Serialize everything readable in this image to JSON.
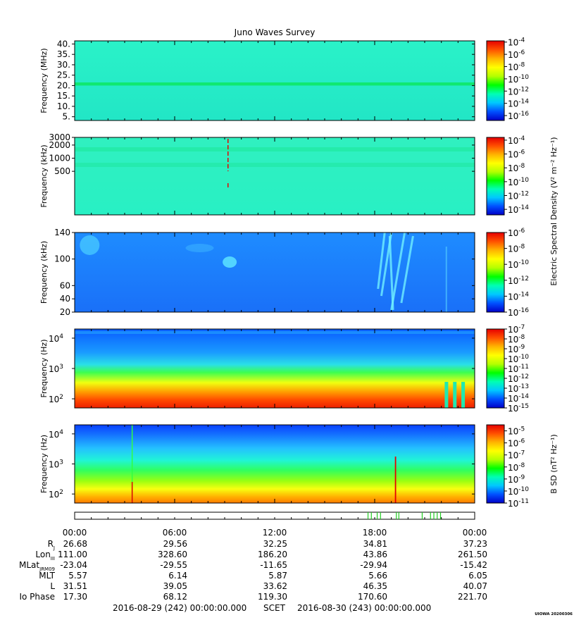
{
  "title": "Juno Waves Survey",
  "colors": {
    "colormap": [
      "#0000c8",
      "#0050ff",
      "#00c8ff",
      "#00ffb4",
      "#00ff00",
      "#b4ff00",
      "#ffff00",
      "#ffb400",
      "#ff5000",
      "#e60000"
    ]
  },
  "chart_data": [
    {
      "type": "heatmap",
      "panel": 1,
      "ylabel": "Frequency (MHz)",
      "yticks": [
        "40.",
        "35.",
        "30.",
        "25.",
        "20.",
        "15.",
        "10.",
        "5."
      ],
      "ytick_values": [
        40,
        35,
        30,
        25,
        20,
        15,
        10,
        5
      ],
      "ylim": [
        3.2,
        41.5
      ],
      "yscale": "linear",
      "colorbar_label": "",
      "colorbar_ticks": [
        {
          "base": "10",
          "exp": "-4"
        },
        {
          "base": "10",
          "exp": "-6"
        },
        {
          "base": "10",
          "exp": "-8"
        },
        {
          "base": "10",
          "exp": "-10"
        },
        {
          "base": "10",
          "exp": "-12"
        },
        {
          "base": "10",
          "exp": "-14"
        },
        {
          "base": "10",
          "exp": "-16"
        }
      ],
      "colorbar_values": [
        -4,
        -6,
        -8,
        -10,
        -12,
        -14,
        -16
      ],
      "colorbar_range": [
        -16.8,
        -3.8
      ]
    },
    {
      "type": "heatmap",
      "panel": 2,
      "ylabel": "Frequency (kHz)",
      "yticks": [
        "3000",
        "2000",
        "1000",
        "500"
      ],
      "ytick_values": [
        3000,
        2000,
        1000,
        500
      ],
      "ylim": [
        50,
        3000
      ],
      "yscale": "log",
      "colorbar_label": "Electric Spectral Density (V² m⁻² Hz⁻¹)",
      "colorbar_ticks": [
        {
          "base": "10",
          "exp": "-4"
        },
        {
          "base": "10",
          "exp": "-6"
        },
        {
          "base": "10",
          "exp": "-8"
        },
        {
          "base": "10",
          "exp": "-10"
        },
        {
          "base": "10",
          "exp": "-12"
        },
        {
          "base": "10",
          "exp": "-14"
        }
      ],
      "colorbar_values": [
        -4,
        -6,
        -8,
        -10,
        -12,
        -14
      ],
      "colorbar_range": [
        -14.8,
        -3.6
      ]
    },
    {
      "type": "heatmap",
      "panel": 3,
      "ylabel": "Frequency (kHz)",
      "yticks": [
        "140",
        "100",
        "60",
        "40",
        "20"
      ],
      "ytick_values": [
        140,
        100,
        60,
        40,
        20
      ],
      "ylim": [
        20,
        140
      ],
      "yscale": "linear",
      "colorbar_label": "",
      "colorbar_ticks": [
        {
          "base": "10",
          "exp": "-6"
        },
        {
          "base": "10",
          "exp": "-8"
        },
        {
          "base": "10",
          "exp": "-10"
        },
        {
          "base": "10",
          "exp": "-12"
        },
        {
          "base": "10",
          "exp": "-14"
        },
        {
          "base": "10",
          "exp": "-16"
        }
      ],
      "colorbar_values": [
        -6,
        -8,
        -10,
        -12,
        -14,
        -16
      ],
      "colorbar_range": [
        -16,
        -6
      ]
    },
    {
      "type": "heatmap",
      "panel": 4,
      "ylabel": "Frequency (Hz)",
      "yticks": [
        {
          "base": "10",
          "exp": "4"
        },
        {
          "base": "10",
          "exp": "3"
        },
        {
          "base": "10",
          "exp": "2"
        }
      ],
      "ytick_values": [
        10000,
        1000,
        100
      ],
      "ylim": [
        50,
        20000
      ],
      "yscale": "log",
      "colorbar_label": "",
      "colorbar_ticks": [
        {
          "base": "10",
          "exp": "-7"
        },
        {
          "base": "10",
          "exp": "-8"
        },
        {
          "base": "10",
          "exp": "-9"
        },
        {
          "base": "10",
          "exp": "-10"
        },
        {
          "base": "10",
          "exp": "-11"
        },
        {
          "base": "10",
          "exp": "-12"
        },
        {
          "base": "10",
          "exp": "-13"
        },
        {
          "base": "10",
          "exp": "-14"
        },
        {
          "base": "10",
          "exp": "-15"
        }
      ],
      "colorbar_values": [
        -7,
        -8,
        -9,
        -10,
        -11,
        -12,
        -13,
        -14,
        -15
      ],
      "colorbar_range": [
        -15,
        -7
      ]
    },
    {
      "type": "heatmap",
      "panel": 5,
      "ylabel": "Frequency (Hz)",
      "yticks": [
        {
          "base": "10",
          "exp": "4"
        },
        {
          "base": "10",
          "exp": "3"
        },
        {
          "base": "10",
          "exp": "2"
        }
      ],
      "ytick_values": [
        10000,
        1000,
        100
      ],
      "ylim": [
        50,
        20000
      ],
      "yscale": "log",
      "colorbar_label": "B SD (nT² Hz⁻¹)",
      "colorbar_ticks": [
        {
          "base": "10",
          "exp": "-5"
        },
        {
          "base": "10",
          "exp": "-6"
        },
        {
          "base": "10",
          "exp": "-7"
        },
        {
          "base": "10",
          "exp": "-8"
        },
        {
          "base": "10",
          "exp": "-9"
        },
        {
          "base": "10",
          "exp": "-10"
        },
        {
          "base": "10",
          "exp": "-11"
        }
      ],
      "colorbar_values": [
        -5,
        -6,
        -7,
        -8,
        -9,
        -10,
        -11
      ],
      "colorbar_range": [
        -11,
        -4.5
      ]
    }
  ],
  "time_axis": {
    "labels": [
      "00:00",
      "06:00",
      "12:00",
      "18:00",
      "00:00"
    ],
    "hours": [
      0,
      6,
      12,
      18,
      24
    ],
    "range_hours": [
      0,
      24
    ]
  },
  "flags": [
    17.6,
    17.8,
    18.15,
    18.35,
    19.3,
    19.45,
    20.85,
    21.35,
    21.55,
    21.75,
    21.95
  ],
  "ephemeris": [
    {
      "label": "R",
      "sub": "J",
      "values": [
        "26.68",
        "29.56",
        "32.25",
        "34.81",
        "37.23"
      ]
    },
    {
      "label": "Lon",
      "sub": "III",
      "values": [
        "111.00",
        "328.60",
        "186.20",
        "43.86",
        "261.50"
      ]
    },
    {
      "label": "MLat",
      "sub": "JRM09",
      "values": [
        "-23.04",
        "-29.55",
        "-11.65",
        "-29.94",
        "-15.42"
      ]
    },
    {
      "label": "MLT",
      "sub": "",
      "values": [
        "5.57",
        "6.14",
        "5.87",
        "5.66",
        "6.05"
      ]
    },
    {
      "label": "L",
      "sub": "",
      "values": [
        "31.51",
        "39.05",
        "33.62",
        "46.35",
        "40.07"
      ]
    },
    {
      "label": "Io Phase",
      "sub": "",
      "values": [
        "17.30",
        "68.12",
        "119.30",
        "170.60",
        "221.70"
      ]
    }
  ],
  "footer": {
    "start": "2016-08-29 (242) 00:00:00.000",
    "scet": "SCET",
    "end": "2016-08-30 (243) 00:00:00.000",
    "stamp": "UIOWA 20200306"
  }
}
